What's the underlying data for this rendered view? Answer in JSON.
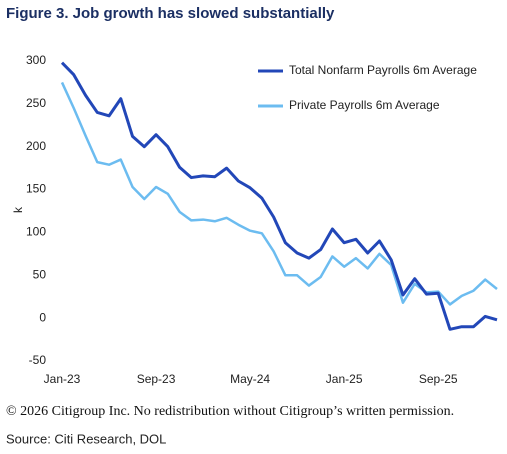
{
  "chart_data": {
    "type": "line",
    "title": "Figure 3. Job growth has slowed substantially",
    "ylabel": "k",
    "categories": [
      "Jan-23",
      null,
      null,
      null,
      null,
      null,
      null,
      null,
      "Sep-23",
      null,
      null,
      null,
      null,
      null,
      null,
      null,
      "May-24",
      null,
      null,
      null,
      null,
      null,
      null,
      null,
      "Jan-25",
      null,
      null,
      null,
      null,
      null,
      null,
      null,
      "Sep-25",
      null,
      null,
      null,
      null,
      null
    ],
    "series": [
      {
        "name": "Total Nonfarm Payrolls 6m Average",
        "color": "#2247b8",
        "values": [
          298,
          284,
          260,
          240,
          236,
          256,
          212,
          200,
          214,
          200,
          176,
          164,
          166,
          165,
          175,
          160,
          152,
          140,
          118,
          88,
          76,
          70,
          80,
          104,
          88,
          92,
          76,
          90,
          68,
          27,
          46,
          28,
          29,
          -13,
          -10,
          -10,
          2,
          -2
        ]
      },
      {
        "name": "Private Payrolls 6m Average",
        "color": "#6cbcf0",
        "values": [
          275,
          245,
          213,
          182,
          179,
          185,
          153,
          139,
          153,
          145,
          124,
          114,
          115,
          113,
          117,
          109,
          102,
          99,
          78,
          50,
          50,
          38,
          48,
          72,
          60,
          70,
          58,
          75,
          62,
          18,
          40,
          30,
          31,
          16,
          26,
          32,
          45,
          34
        ]
      }
    ],
    "ylim": [
      -50,
      300
    ],
    "yticks": [
      -50,
      0,
      50,
      100,
      150,
      200,
      250,
      300
    ],
    "legend": "upper right",
    "grid": false
  },
  "footnote": "© 2026 Citigroup Inc. No redistribution without Citigroup’s written permission.",
  "source": "Source: Citi Research, DOL"
}
